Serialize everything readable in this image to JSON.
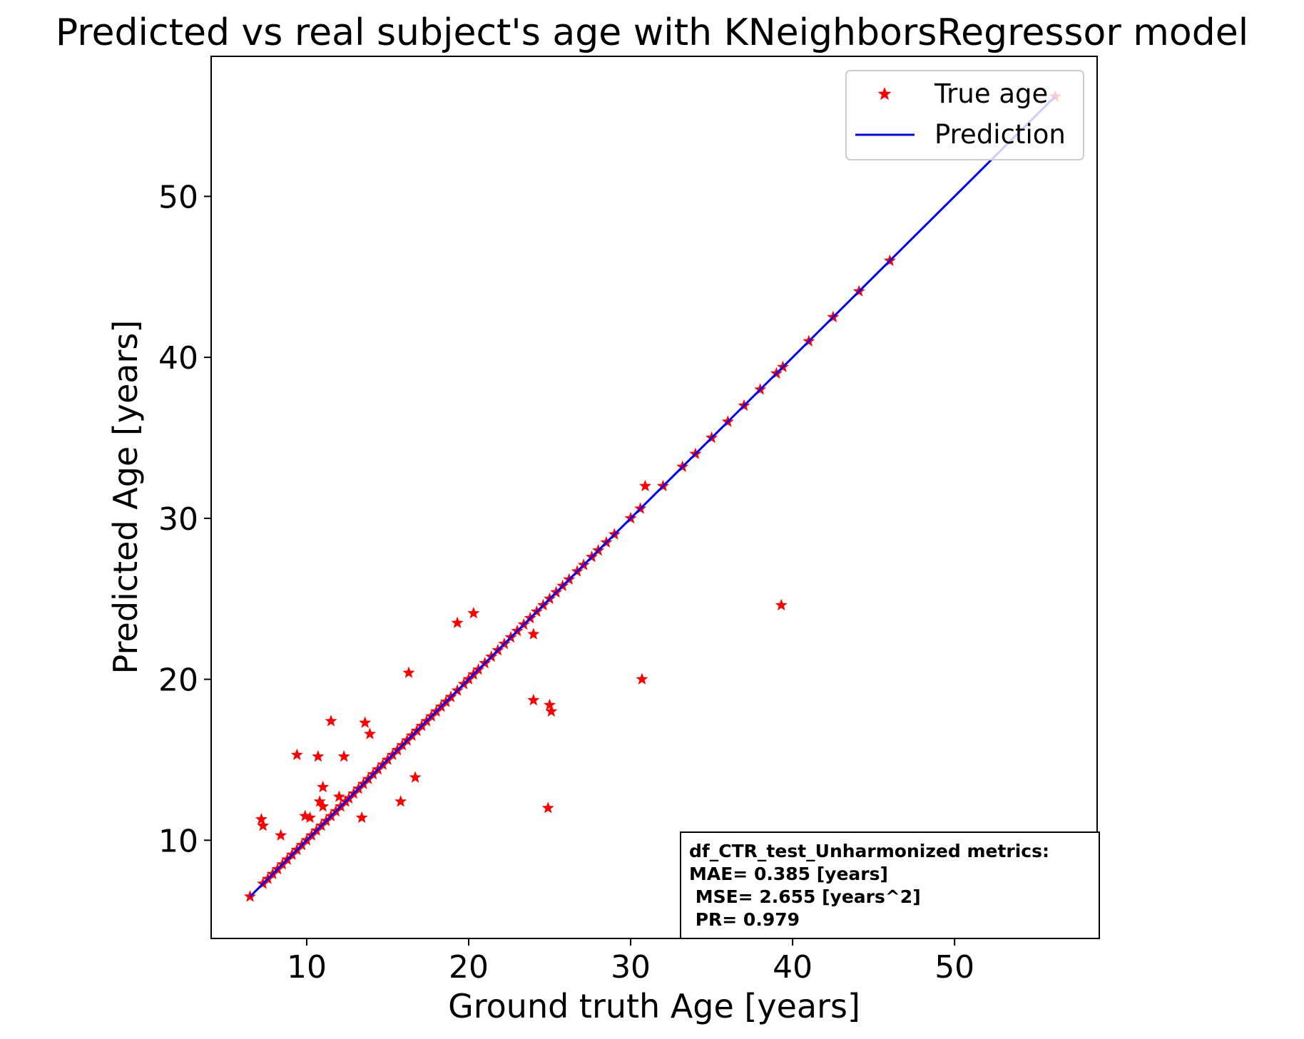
{
  "chart_data": {
    "type": "scatter",
    "title": "Predicted vs real subject's age with KNeighborsRegressor model",
    "xlabel": "Ground truth Age [years]",
    "ylabel": "Predicted Age [years]",
    "xlim": [
      4.1,
      58.8
    ],
    "ylim": [
      3.9,
      58.7
    ],
    "xticks": [
      10,
      20,
      30,
      40,
      50
    ],
    "yticks": [
      10,
      20,
      30,
      40,
      50
    ],
    "grid": false,
    "legend_position": "top-right",
    "legend": [
      {
        "label": "True age",
        "marker": "star",
        "color": "#ff0000"
      },
      {
        "label": "Prediction",
        "marker": "line",
        "color": "#0000ff"
      }
    ],
    "series": [
      {
        "name": "True age",
        "kind": "scatter",
        "marker": "star",
        "color": "#ff0000",
        "points": [
          [
            6.5,
            6.5
          ],
          [
            7.2,
            11.3
          ],
          [
            7.3,
            10.9
          ],
          [
            7.3,
            7.3
          ],
          [
            7.6,
            7.6
          ],
          [
            7.9,
            7.9
          ],
          [
            8.2,
            8.2
          ],
          [
            8.4,
            10.3
          ],
          [
            8.5,
            8.5
          ],
          [
            8.8,
            8.8
          ],
          [
            9.1,
            9.1
          ],
          [
            9.4,
            15.3
          ],
          [
            9.4,
            9.4
          ],
          [
            9.7,
            9.7
          ],
          [
            9.9,
            11.5
          ],
          [
            10.0,
            10.0
          ],
          [
            10.2,
            11.4
          ],
          [
            10.3,
            10.3
          ],
          [
            10.6,
            10.6
          ],
          [
            10.7,
            15.2
          ],
          [
            10.8,
            12.4
          ],
          [
            10.9,
            10.9
          ],
          [
            11.0,
            13.3
          ],
          [
            11.0,
            12.1
          ],
          [
            11.2,
            11.2
          ],
          [
            11.5,
            17.4
          ],
          [
            11.5,
            11.5
          ],
          [
            11.8,
            11.8
          ],
          [
            12.0,
            12.7
          ],
          [
            12.1,
            12.1
          ],
          [
            12.3,
            15.2
          ],
          [
            12.4,
            12.4
          ],
          [
            12.6,
            12.6
          ],
          [
            12.9,
            12.9
          ],
          [
            13.2,
            13.2
          ],
          [
            13.4,
            11.4
          ],
          [
            13.5,
            13.5
          ],
          [
            13.6,
            17.3
          ],
          [
            13.8,
            13.8
          ],
          [
            13.9,
            16.6
          ],
          [
            14.1,
            14.1
          ],
          [
            14.4,
            14.4
          ],
          [
            14.7,
            14.7
          ],
          [
            15.0,
            15.0
          ],
          [
            15.3,
            15.3
          ],
          [
            15.6,
            15.6
          ],
          [
            15.8,
            12.4
          ],
          [
            15.9,
            15.9
          ],
          [
            16.2,
            16.2
          ],
          [
            16.3,
            20.4
          ],
          [
            16.5,
            16.5
          ],
          [
            16.7,
            13.9
          ],
          [
            16.8,
            16.8
          ],
          [
            17.1,
            17.1
          ],
          [
            17.4,
            17.4
          ],
          [
            17.7,
            17.7
          ],
          [
            18.0,
            18.0
          ],
          [
            18.3,
            18.3
          ],
          [
            18.6,
            18.6
          ],
          [
            18.9,
            18.9
          ],
          [
            19.3,
            23.5
          ],
          [
            19.3,
            19.3
          ],
          [
            19.7,
            19.7
          ],
          [
            20.0,
            20.0
          ],
          [
            20.3,
            24.1
          ],
          [
            20.3,
            20.3
          ],
          [
            20.6,
            20.6
          ],
          [
            21.0,
            21.0
          ],
          [
            21.4,
            21.4
          ],
          [
            21.8,
            21.8
          ],
          [
            22.2,
            22.2
          ],
          [
            22.6,
            22.6
          ],
          [
            23.0,
            23.0
          ],
          [
            23.4,
            23.4
          ],
          [
            23.8,
            23.8
          ],
          [
            24.0,
            22.8
          ],
          [
            24.0,
            18.7
          ],
          [
            24.2,
            24.2
          ],
          [
            24.6,
            24.6
          ],
          [
            24.9,
            12.0
          ],
          [
            25.0,
            25.0
          ],
          [
            25.0,
            18.4
          ],
          [
            25.1,
            18.0
          ],
          [
            25.4,
            25.4
          ],
          [
            25.8,
            25.8
          ],
          [
            26.2,
            26.2
          ],
          [
            26.7,
            26.7
          ],
          [
            27.1,
            27.1
          ],
          [
            27.6,
            27.6
          ],
          [
            28.0,
            28.0
          ],
          [
            28.5,
            28.5
          ],
          [
            29.0,
            29.0
          ],
          [
            30.0,
            30.0
          ],
          [
            30.6,
            30.6
          ],
          [
            30.7,
            20.0
          ],
          [
            30.9,
            32.0
          ],
          [
            32.0,
            32.0
          ],
          [
            33.2,
            33.2
          ],
          [
            34.0,
            34.0
          ],
          [
            35.0,
            35.0
          ],
          [
            36.0,
            36.0
          ],
          [
            37.0,
            37.0
          ],
          [
            38.0,
            38.0
          ],
          [
            39.0,
            39.0
          ],
          [
            39.3,
            24.6
          ],
          [
            39.4,
            39.4
          ],
          [
            41.0,
            41.0
          ],
          [
            42.5,
            42.5
          ],
          [
            44.1,
            44.1
          ],
          [
            46.0,
            46.0
          ],
          [
            56.2,
            56.2
          ]
        ]
      },
      {
        "name": "Prediction",
        "kind": "line",
        "color": "#0000ff",
        "x": [
          6.5,
          56.2
        ],
        "y": [
          6.5,
          56.2
        ]
      }
    ],
    "annotation": {
      "lines": [
        "df_CTR_test_Unharmonized metrics:",
        "MAE= 0.385 [years]",
        " MSE= 2.655 [years^2]",
        " PR= 0.979"
      ],
      "position": "bottom-right"
    }
  }
}
